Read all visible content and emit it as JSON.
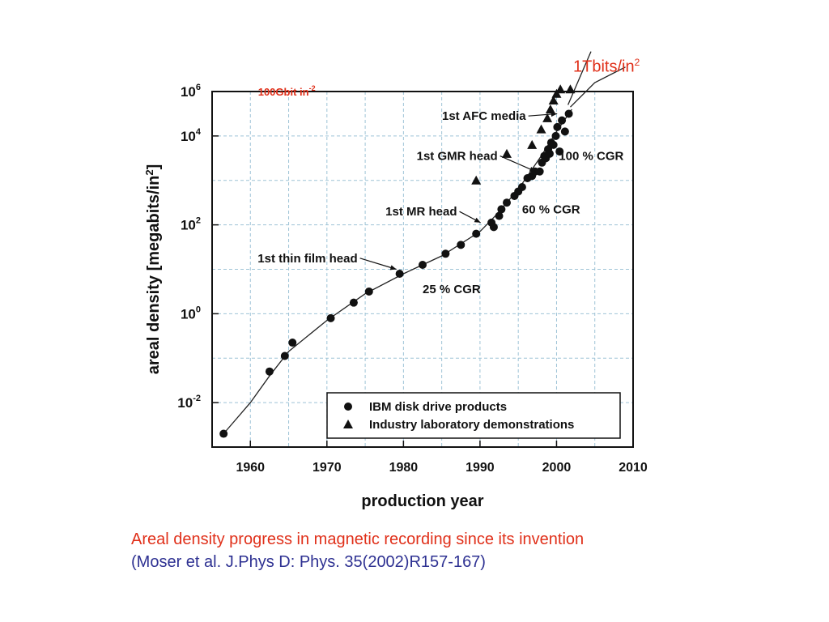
{
  "top_label": {
    "text": "1Tbits/in",
    "sup": "2"
  },
  "caption": {
    "line1": "Areal density progress in magnetic recording since its invention",
    "line2": "(Moser et al. J.Phys D: Phys. 35(2002)R157-167)"
  },
  "colors": {
    "accent_red": "#e0301a",
    "caption_blue": "#2e3192",
    "grid": "#9ec3d6",
    "ink": "#111111"
  },
  "chart_data": {
    "type": "scatter",
    "xlabel": "production year",
    "ylabel": "areal density [megabits/in",
    "ylabel_sup": "2",
    "ylabel_close": "]",
    "xlim": [
      1955,
      2010
    ],
    "ylim_log10": [
      -3,
      5
    ],
    "x_ticks": [
      1960,
      1970,
      1980,
      1990,
      2000,
      2010
    ],
    "y_ticks": [
      {
        "base": "10",
        "exp": "-2",
        "log": -2
      },
      {
        "base": "10",
        "exp": "0",
        "log": 0
      },
      {
        "base": "10",
        "exp": "2",
        "log": 2
      },
      {
        "base": "10",
        "exp": "4",
        "log": 4
      },
      {
        "base": "10",
        "exp": "6",
        "log": 6
      }
    ],
    "grid": true,
    "legend_position": "bottom-right",
    "series": [
      {
        "name": "IBM disk drive products",
        "marker": "circle",
        "points": [
          [
            1956.5,
            -2.7
          ],
          [
            1962.5,
            -1.3
          ],
          [
            1964.5,
            -0.95
          ],
          [
            1965.5,
            -0.65
          ],
          [
            1970.5,
            -0.1
          ],
          [
            1973.5,
            0.25
          ],
          [
            1975.5,
            0.5
          ],
          [
            1979.5,
            0.9
          ],
          [
            1982.5,
            1.1
          ],
          [
            1985.5,
            1.35
          ],
          [
            1987.5,
            1.55
          ],
          [
            1989.5,
            1.8
          ],
          [
            1991.5,
            2.05
          ],
          [
            1991.8,
            1.95
          ],
          [
            1992.5,
            2.2
          ],
          [
            1992.8,
            2.35
          ],
          [
            1993.5,
            2.5
          ],
          [
            1994.5,
            2.65
          ],
          [
            1995,
            2.75
          ],
          [
            1995.5,
            2.85
          ],
          [
            1996.2,
            3.05
          ],
          [
            1996.8,
            3.1
          ],
          [
            1997.2,
            3.2
          ],
          [
            1997.8,
            3.2
          ],
          [
            1998.1,
            3.4
          ],
          [
            1998.4,
            3.55
          ],
          [
            1998.6,
            3.5
          ],
          [
            1998.9,
            3.7
          ],
          [
            1999.1,
            3.6
          ],
          [
            1999.3,
            3.85
          ],
          [
            1999.6,
            3.8
          ],
          [
            1999.9,
            4.0
          ],
          [
            2000.1,
            4.2
          ],
          [
            2000.4,
            3.65
          ],
          [
            2000.7,
            4.35
          ],
          [
            2001.1,
            4.1
          ],
          [
            2001.6,
            4.5
          ]
        ]
      },
      {
        "name": "Industry laboratory demonstrations",
        "marker": "triangle",
        "points": [
          [
            1989.5,
            3.0
          ],
          [
            1993.5,
            3.6
          ],
          [
            1996.8,
            3.8
          ],
          [
            1998,
            4.15
          ],
          [
            1998.8,
            4.4
          ],
          [
            1999.2,
            4.6
          ],
          [
            1999.6,
            4.8
          ],
          [
            2000,
            4.95
          ],
          [
            2000.5,
            5.05
          ],
          [
            2001.8,
            5.05
          ]
        ]
      }
    ],
    "fit_curves": [
      {
        "points": [
          [
            1956.5,
            -2.7
          ],
          [
            1960,
            -2.0
          ],
          [
            1962.5,
            -1.4
          ],
          [
            1965,
            -0.85
          ],
          [
            1970,
            -0.15
          ],
          [
            1975,
            0.45
          ],
          [
            1980,
            0.9
          ],
          [
            1985,
            1.3
          ],
          [
            1990,
            1.85
          ],
          [
            1992,
            2.2
          ],
          [
            1995,
            2.8
          ],
          [
            1998,
            3.55
          ],
          [
            2000,
            4.1
          ],
          [
            2002,
            4.6
          ]
        ]
      },
      {
        "points": [
          [
            2001.5,
            4.7
          ],
          [
            2003,
            5.3
          ],
          [
            2004.5,
            5.9
          ]
        ]
      },
      {
        "points": [
          [
            2001.8,
            4.65
          ],
          [
            2005,
            5.2
          ],
          [
            2009,
            5.55
          ]
        ]
      }
    ],
    "annotations": [
      {
        "text": "1st AFC media",
        "x": 1996,
        "y": 4.45,
        "anchor": "end",
        "arrow_to": [
          2000.5,
          4.5
        ]
      },
      {
        "text": "1st GMR head",
        "x": 1992.3,
        "y": 3.55,
        "anchor": "end",
        "arrow_to": [
          1997.7,
          3.2
        ]
      },
      {
        "text": "1st MR head",
        "x": 1987,
        "y": 2.3,
        "anchor": "end",
        "arrow_to": [
          1990.5,
          2.05
        ]
      },
      {
        "text": "1st thin film head",
        "x": 1974,
        "y": 1.25,
        "anchor": "end",
        "arrow_to": [
          1979.5,
          1.0
        ]
      },
      {
        "text": "100 % CGR",
        "x": 2000.3,
        "y": 3.55,
        "anchor": "start"
      },
      {
        "text": "60 % CGR",
        "x": 1995.5,
        "y": 2.35,
        "anchor": "start"
      },
      {
        "text": "25 % CGR",
        "x": 1982.5,
        "y": 0.55,
        "anchor": "start"
      },
      {
        "text": "100Gbit in",
        "sup": "-2",
        "x": 1961,
        "y": 5.0,
        "anchor": "start",
        "color": "red"
      }
    ]
  }
}
